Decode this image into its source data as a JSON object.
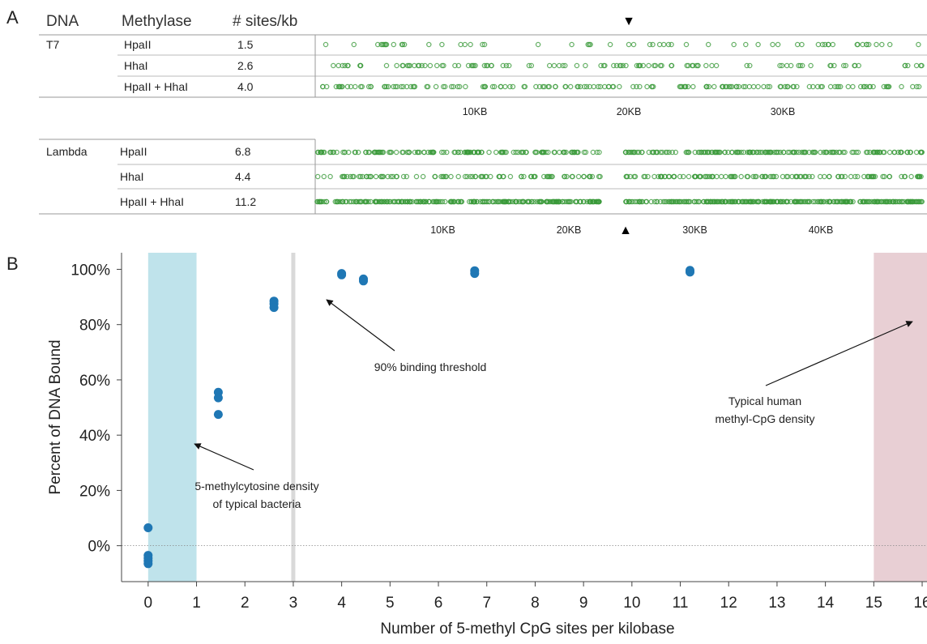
{
  "panel_a": {
    "label": "A",
    "headers": {
      "dna": "DNA",
      "methylase": "Methylase",
      "sites": "# sites/kb"
    },
    "groups": [
      {
        "dna": "T7",
        "rows": [
          {
            "methylase": "HpaII",
            "sites": "1.5",
            "density": 1.5
          },
          {
            "methylase": "HhaI",
            "sites": "2.6",
            "density": 2.6
          },
          {
            "methylase": "HpaII + HhaI",
            "sites": "4.0",
            "density": 4.0
          }
        ],
        "axis": {
          "length_kb": 40,
          "ticks": [
            {
              "kb": 10,
              "label": "10KB"
            },
            {
              "kb": 20,
              "label": "20KB"
            },
            {
              "kb": 30,
              "label": "30KB"
            }
          ]
        },
        "marker": {
          "kb": 20,
          "symbol": "▼",
          "position": "top"
        }
      },
      {
        "dna": "Lambda",
        "rows": [
          {
            "methylase": "HpaII",
            "sites": "6.8",
            "density": 6.8
          },
          {
            "methylase": "HhaI",
            "sites": "4.4",
            "density": 4.4
          },
          {
            "methylase": "HpaII + HhaI",
            "sites": "11.2",
            "density": 11.2
          }
        ],
        "gaps_kb": [
          [
            22.5,
            24.5
          ]
        ],
        "axis": {
          "length_kb": 48.5,
          "ticks": [
            {
              "kb": 10,
              "label": "10KB"
            },
            {
              "kb": 20,
              "label": "20KB"
            },
            {
              "kb": 30,
              "label": "30KB"
            },
            {
              "kb": 40,
              "label": "40KB"
            }
          ]
        },
        "marker": {
          "kb": 24.5,
          "symbol": "▲",
          "position": "bottom"
        }
      }
    ],
    "colors": {
      "site_marker": "#3a9a3a"
    }
  },
  "panel_b": {
    "label": "B",
    "annotations": {
      "threshold": "90% binding threshold",
      "human": [
        "Typical human",
        "methyl-CpG density"
      ],
      "bacteria": [
        "5-methylcytosine density",
        "of typical bacteria"
      ]
    },
    "colors": {
      "points": "#1f77b4",
      "bacteria_band": "#bfe3eb",
      "human_band": "#e8cfd4",
      "threshold_line": "#d9d9d9"
    }
  },
  "chart_data": {
    "type": "scatter",
    "title": "",
    "xlabel": "Number of 5-methyl CpG sites per kilobase",
    "ylabel": "Percent of DNA Bound",
    "xlim": [
      -0.55,
      16.1
    ],
    "ylim": [
      -13,
      106
    ],
    "x_ticks": [
      0,
      1,
      2,
      3,
      4,
      5,
      6,
      7,
      8,
      9,
      10,
      11,
      12,
      13,
      14,
      15,
      16
    ],
    "y_ticks": [
      {
        "value": 0,
        "label": "0%"
      },
      {
        "value": 20,
        "label": "20%"
      },
      {
        "value": 40,
        "label": "40%"
      },
      {
        "value": 60,
        "label": "60%"
      },
      {
        "value": 80,
        "label": "80%"
      },
      {
        "value": 100,
        "label": "100%"
      }
    ],
    "grid": false,
    "reference_lines": [
      {
        "axis": "y",
        "value": 0,
        "style": "dotted"
      },
      {
        "axis": "x",
        "value": 3,
        "label": "90% binding threshold"
      }
    ],
    "bands": [
      {
        "x": [
          0,
          1
        ],
        "label": "5-methylcytosine density of typical bacteria"
      },
      {
        "x": [
          15,
          16.1
        ],
        "label": "Typical human methyl-CpG density"
      }
    ],
    "points": [
      {
        "x": 0,
        "y": 6.5
      },
      {
        "x": 0,
        "y": -3.5
      },
      {
        "x": 0,
        "y": -4.5
      },
      {
        "x": 0,
        "y": -5.5
      },
      {
        "x": 0,
        "y": -6.5
      },
      {
        "x": 1.45,
        "y": 55.5
      },
      {
        "x": 1.45,
        "y": 53.5
      },
      {
        "x": 1.45,
        "y": 47.5
      },
      {
        "x": 2.6,
        "y": 88.5
      },
      {
        "x": 2.6,
        "y": 87.5
      },
      {
        "x": 2.6,
        "y": 86.2
      },
      {
        "x": 4.0,
        "y": 98.5
      },
      {
        "x": 4.0,
        "y": 98.0
      },
      {
        "x": 4.45,
        "y": 96.5
      },
      {
        "x": 4.45,
        "y": 95.8
      },
      {
        "x": 6.75,
        "y": 99.5
      },
      {
        "x": 6.75,
        "y": 98.5
      },
      {
        "x": 11.2,
        "y": 99.6
      },
      {
        "x": 11.2,
        "y": 99.0
      }
    ]
  }
}
